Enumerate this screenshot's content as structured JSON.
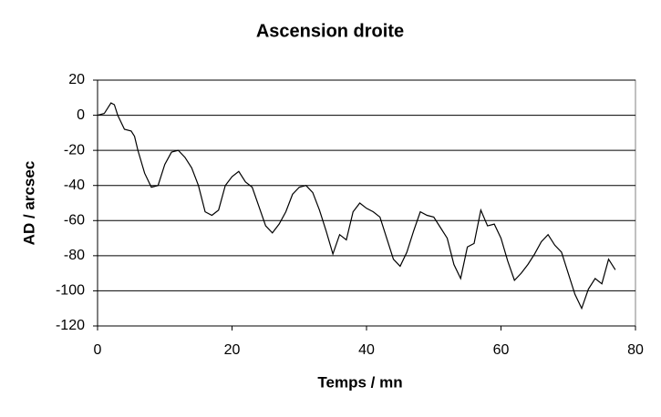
{
  "chart_data": {
    "type": "line",
    "title": "Ascension droite",
    "x_label": "Temps / mn",
    "y_label": "AD / arcsec",
    "series": [
      {
        "color": "#000000",
        "x": [
          0,
          1,
          2,
          2.5,
          3,
          4,
          5,
          5.5,
          6,
          7,
          8,
          9,
          10,
          11,
          12,
          13,
          14,
          15,
          16,
          17,
          18,
          19,
          20,
          21,
          22,
          23,
          24,
          25,
          26,
          27,
          28,
          29,
          30,
          31,
          32,
          33,
          34,
          35,
          36,
          37,
          38,
          39,
          40,
          41,
          42,
          43,
          44,
          45,
          46,
          47,
          48,
          49,
          50,
          51,
          52,
          53,
          54,
          55,
          56,
          57,
          58,
          59,
          60,
          61,
          62,
          63,
          64,
          65,
          66,
          67,
          68,
          69,
          70,
          71,
          72,
          73,
          74,
          75,
          76,
          77
        ],
        "values": [
          0,
          1,
          7,
          6,
          0,
          -8,
          -9,
          -12,
          -20,
          -33,
          -41,
          -40,
          -28,
          -21,
          -20,
          -24,
          -30,
          -40,
          -55,
          -57,
          -54,
          -40,
          -35,
          -32,
          -38,
          -41,
          -52,
          -63,
          -67,
          -62,
          -55,
          -45,
          -41,
          -40,
          -44,
          -54,
          -66,
          -79,
          -68,
          -71,
          -55,
          -50,
          -53,
          -55,
          -58,
          -70,
          -82,
          -86,
          -78,
          -66,
          -55,
          -57,
          -58,
          -64,
          -70,
          -85,
          -93,
          -75,
          -73,
          -54,
          -63,
          -62,
          -70,
          -83,
          -94,
          -90,
          -85,
          -79,
          -72,
          -68,
          -74,
          -78,
          -90,
          -102,
          -110,
          -99,
          -93,
          -96,
          -82,
          -88
        ]
      }
    ],
    "xlim": [
      0,
      80
    ],
    "xticks": [
      0,
      20,
      40,
      60,
      80
    ],
    "ylim": [
      -120,
      20
    ],
    "yticks": [
      20,
      0,
      -20,
      -40,
      -60,
      -80,
      -100,
      -120
    ],
    "grid": true
  }
}
